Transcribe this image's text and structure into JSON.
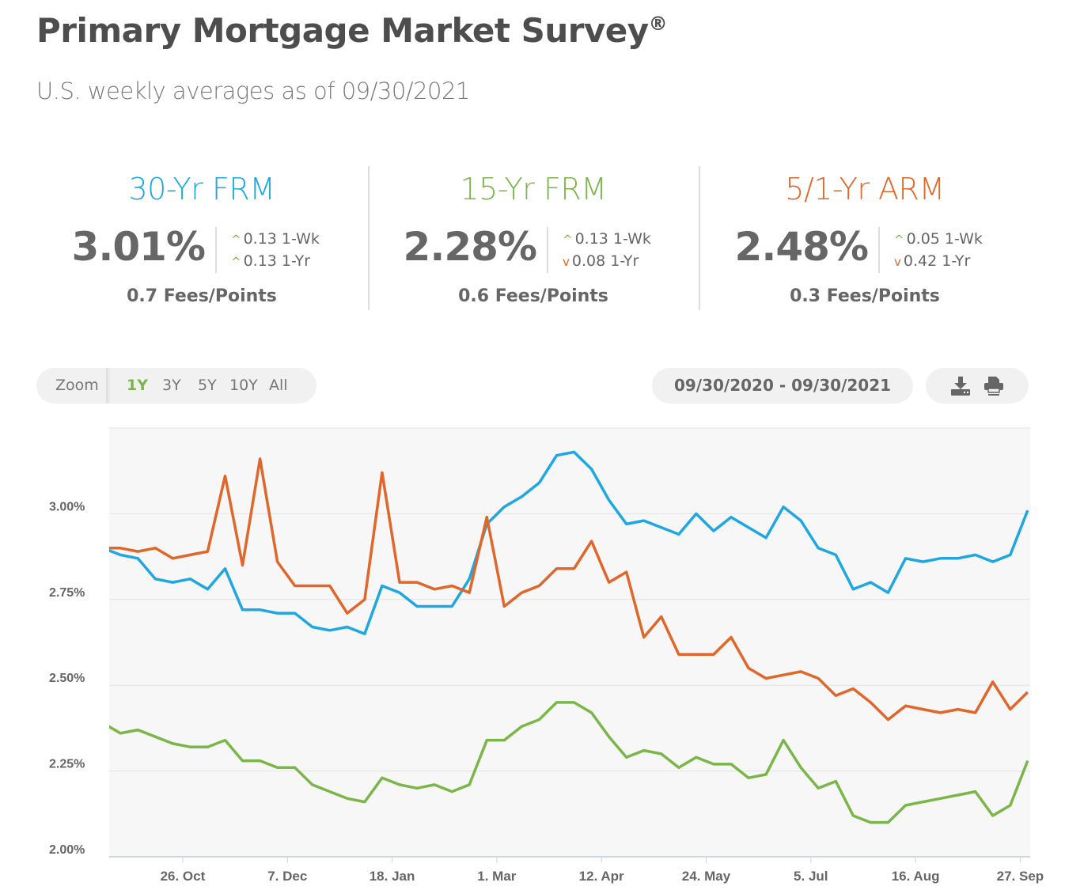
{
  "header": {
    "title": "Primary Mortgage Market Survey",
    "title_mark": "®",
    "subtitle": "U.S. weekly averages as of 09/30/2021"
  },
  "stats": [
    {
      "label": "30-Yr FRM",
      "value": "3.01%",
      "wk_dir": "up",
      "wk": "0.13 1-Wk",
      "yr_dir": "up",
      "yr": "0.13 1-Yr",
      "fees": "0.7 Fees/Points",
      "color": "#1ea7e1"
    },
    {
      "label": "15-Yr FRM",
      "value": "2.28%",
      "wk_dir": "up",
      "wk": "0.13 1-Wk",
      "yr_dir": "down",
      "yr": "0.08 1-Yr",
      "fees": "0.6 Fees/Points",
      "color": "#7ab648"
    },
    {
      "label": "5/1-Yr ARM",
      "value": "2.48%",
      "wk_dir": "up",
      "wk": "0.05 1-Wk",
      "yr_dir": "down",
      "yr": "0.42 1-Yr",
      "fees": "0.3 Fees/Points",
      "color": "#e0662a"
    }
  ],
  "arrows": {
    "up": "^",
    "down": "v",
    "up_color": "#7ab648",
    "down_color": "#e0662a"
  },
  "toolbar": {
    "zoom_label": "Zoom",
    "zoom_options": [
      "1Y",
      "3Y",
      "5Y",
      "10Y",
      "All"
    ],
    "active": "1Y",
    "date_range": "09/30/2020 - 09/30/2021",
    "download_icon": "download-icon",
    "print_icon": "print-icon"
  },
  "chart_data": {
    "type": "line",
    "x_unit": "days since 2020-10-01",
    "xlim": [
      -4.5,
      365
    ],
    "ylim": [
      2.0,
      3.25
    ],
    "y_ticks": [
      2.0,
      2.25,
      2.5,
      2.75,
      3.0
    ],
    "y_tick_labels": [
      "2.00%",
      "2.25%",
      "2.50%",
      "2.75%",
      "3.00%"
    ],
    "x_ticks": [
      25,
      67,
      109,
      151,
      193,
      235,
      277,
      319,
      361
    ],
    "x_tick_labels": [
      "26. Oct",
      "7. Dec",
      "18. Jan",
      "1. Mar",
      "12. Apr",
      "24. May",
      "5. Jul",
      "16. Aug",
      "27. Sep"
    ],
    "grid": true,
    "start_day": -7,
    "step_days": 7,
    "series": [
      {
        "name": "30-Yr FRM",
        "color": "#1ea7e1",
        "values": [
          2.9,
          2.88,
          2.87,
          2.81,
          2.8,
          2.81,
          2.78,
          2.84,
          2.72,
          2.72,
          2.71,
          2.71,
          2.67,
          2.66,
          2.67,
          2.65,
          2.79,
          2.77,
          2.73,
          2.73,
          2.73,
          2.81,
          2.97,
          3.02,
          3.05,
          3.09,
          3.17,
          3.18,
          3.13,
          3.04,
          2.97,
          2.98,
          2.96,
          2.94,
          3.0,
          2.95,
          2.99,
          2.96,
          2.93,
          3.02,
          2.98,
          2.9,
          2.88,
          2.78,
          2.8,
          2.77,
          2.87,
          2.86,
          2.87,
          2.87,
          2.88,
          2.86,
          2.88,
          3.01
        ]
      },
      {
        "name": "5/1-Yr ARM",
        "color": "#e0662a",
        "values": [
          2.9,
          2.9,
          2.89,
          2.9,
          2.87,
          2.88,
          2.89,
          3.11,
          2.85,
          3.16,
          2.86,
          2.79,
          2.79,
          2.79,
          2.71,
          2.75,
          3.12,
          2.8,
          2.8,
          2.78,
          2.79,
          2.77,
          2.99,
          2.73,
          2.77,
          2.79,
          2.84,
          2.84,
          2.92,
          2.8,
          2.83,
          2.64,
          2.7,
          2.59,
          2.59,
          2.59,
          2.64,
          2.55,
          2.52,
          2.53,
          2.54,
          2.52,
          2.47,
          2.49,
          2.45,
          2.4,
          2.44,
          2.43,
          2.42,
          2.43,
          2.42,
          2.51,
          2.43,
          2.48
        ]
      },
      {
        "name": "15-Yr FRM",
        "color": "#7ab648",
        "values": [
          2.39,
          2.36,
          2.37,
          2.35,
          2.33,
          2.32,
          2.32,
          2.34,
          2.28,
          2.28,
          2.26,
          2.26,
          2.21,
          2.19,
          2.17,
          2.16,
          2.23,
          2.21,
          2.2,
          2.21,
          2.19,
          2.21,
          2.34,
          2.34,
          2.38,
          2.4,
          2.45,
          2.45,
          2.42,
          2.35,
          2.29,
          2.31,
          2.3,
          2.26,
          2.29,
          2.27,
          2.27,
          2.23,
          2.24,
          2.34,
          2.26,
          2.2,
          2.22,
          2.12,
          2.1,
          2.1,
          2.15,
          2.16,
          2.17,
          2.18,
          2.19,
          2.12,
          2.15,
          2.28
        ]
      }
    ]
  }
}
